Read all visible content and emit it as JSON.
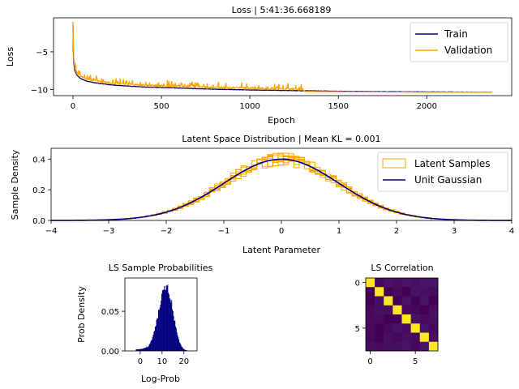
{
  "chart_data": [
    {
      "type": "line",
      "title": "Loss | 5:41:36.668189",
      "xlabel": "Epoch",
      "ylabel": "Loss",
      "xlim": [
        -110,
        2480
      ],
      "ylim": [
        -10.8,
        -0.5
      ],
      "xticks": [
        0,
        500,
        1000,
        1500,
        2000
      ],
      "yticks": [
        -10,
        -5
      ],
      "legend": "top-right",
      "series": [
        {
          "name": "Train",
          "color": "#000080",
          "x": [
            0,
            2,
            5,
            10,
            20,
            40,
            80,
            150,
            250,
            400,
            600,
            800,
            1000,
            1300,
            1600,
            2000,
            2370
          ],
          "values": [
            -1.5,
            -5.0,
            -6.5,
            -7.4,
            -8.0,
            -8.5,
            -8.9,
            -9.2,
            -9.45,
            -9.65,
            -9.8,
            -9.95,
            -10.05,
            -10.15,
            -10.25,
            -10.3,
            -10.35
          ]
        },
        {
          "name": "Validation",
          "color": "#FFA500",
          "x": [
            0,
            2,
            5,
            10,
            20,
            40,
            80,
            150,
            250,
            400,
            600,
            800,
            1000,
            1300,
            1310,
            1600,
            2000,
            2370
          ],
          "values": [
            -1.2,
            -4.5,
            -6.0,
            -7.1,
            -7.8,
            -8.3,
            -8.7,
            -9.0,
            -9.3,
            -9.5,
            -9.65,
            -9.8,
            -9.9,
            -10.0,
            -10.25,
            -10.3,
            -10.35,
            -10.35
          ]
        }
      ]
    },
    {
      "type": "line",
      "title": "Latent Space Distribution | Mean KL = 0.001",
      "xlabel": "Latent Parameter",
      "ylabel": "Sample Density",
      "xlim": [
        -4,
        4
      ],
      "ylim": [
        0,
        0.47
      ],
      "xticks": [
        -4,
        -3,
        -2,
        -1,
        0,
        1,
        2,
        3,
        4
      ],
      "yticks": [
        0.0,
        0.2,
        0.4
      ],
      "legend": "top-right",
      "series": [
        {
          "name": "Latent Samples",
          "color": "#FFA500"
        },
        {
          "name": "Unit Gaussian",
          "color": "#000080"
        }
      ]
    },
    {
      "type": "bar",
      "title": "LS Sample Probabilities",
      "xlabel": "Log-Prob",
      "ylabel": "Prob Density",
      "xlim": [
        -7,
        26
      ],
      "ylim": [
        0,
        0.092
      ],
      "xticks": [
        0,
        10,
        20
      ],
      "yticks": [
        0.0,
        0.05
      ],
      "color": "#000080"
    },
    {
      "type": "heatmap",
      "title": "LS Correlation",
      "xticks": [
        0,
        5
      ],
      "yticks": [
        0,
        5
      ],
      "size": 8,
      "colormap": "viridis",
      "diagonal_value": 1.0,
      "offdiag_value": 0.05
    }
  ]
}
